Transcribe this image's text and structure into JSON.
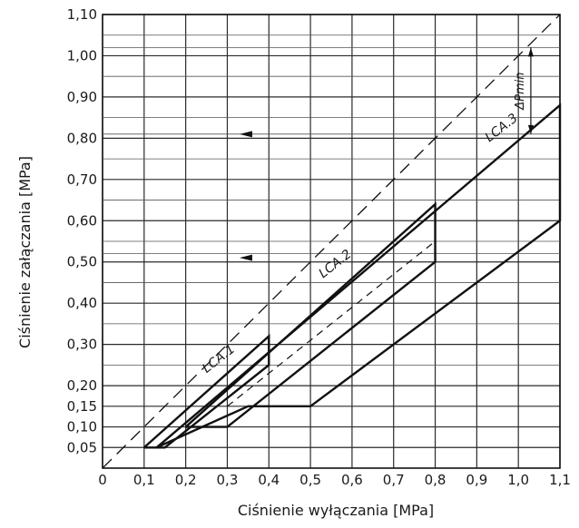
{
  "chart_data": {
    "type": "line",
    "xlabel": "Ciśnienie wyłączania [MPa]",
    "ylabel": "Ciśnienie załączania [MPa]",
    "xlim": [
      0,
      1.1
    ],
    "ylim": [
      0,
      1.1
    ],
    "x_ticks": [
      "0",
      "0,1",
      "0,2",
      "0,3",
      "0,4",
      "0,5",
      "0,6",
      "0,7",
      "0,8",
      "0,9",
      "1,0",
      "1,1"
    ],
    "y_ticks": [
      {
        "value": 0.05,
        "label": "0,05"
      },
      {
        "value": 0.1,
        "label": "0,10"
      },
      {
        "value": 0.15,
        "label": "0,15"
      },
      {
        "value": 0.2,
        "label": "0,20"
      },
      {
        "value": 0.3,
        "label": "0,30"
      },
      {
        "value": 0.4,
        "label": "0,40"
      },
      {
        "value": 0.5,
        "label": "0,50"
      },
      {
        "value": 0.6,
        "label": "0,60"
      },
      {
        "value": 0.7,
        "label": "0,70"
      },
      {
        "value": 0.8,
        "label": "0,80"
      },
      {
        "value": 0.9,
        "label": "0,90"
      },
      {
        "value": 1.0,
        "label": "1,00"
      },
      {
        "value": 1.1,
        "label": "1,10"
      }
    ],
    "grid": true,
    "diagonal": {
      "x": [
        0,
        1.1
      ],
      "y": [
        0,
        1.1
      ]
    },
    "series": [
      {
        "name": "LCA.1",
        "label_pos": [
          0.25,
          0.23
        ],
        "outline": {
          "x": [
            0.1,
            0.15,
            0.4,
            0.4,
            0.1
          ],
          "y": [
            0.05,
            0.05,
            0.25,
            0.32,
            0.05
          ]
        },
        "dashed": {
          "x": [
            0.15,
            0.4
          ],
          "y": [
            0.05,
            0.25
          ]
        }
      },
      {
        "name": "LCA.2",
        "label_pos": [
          0.53,
          0.46
        ],
        "outline": {
          "x": [
            0.2,
            0.3,
            0.8,
            0.8,
            0.2
          ],
          "y": [
            0.1,
            0.1,
            0.5,
            0.64,
            0.1
          ]
        },
        "dashed": {
          "x": [
            0.3,
            0.8
          ],
          "y": [
            0.15,
            0.55
          ]
        }
      },
      {
        "name": "LCA.3",
        "label_pos": [
          0.93,
          0.79
        ],
        "outline": {
          "x": [
            0.13,
            0.35,
            0.5,
            1.1,
            1.1,
            0.13
          ],
          "y": [
            0.05,
            0.15,
            0.15,
            0.6,
            0.88,
            0.05
          ]
        }
      }
    ],
    "arrows": [
      {
        "x": 0.36,
        "y": 0.81
      },
      {
        "x": 0.36,
        "y": 0.51
      }
    ],
    "delta_p": {
      "label": "ΔPmin",
      "x": 1.03,
      "y_top": 1.02,
      "y_bottom": 0.81
    }
  }
}
